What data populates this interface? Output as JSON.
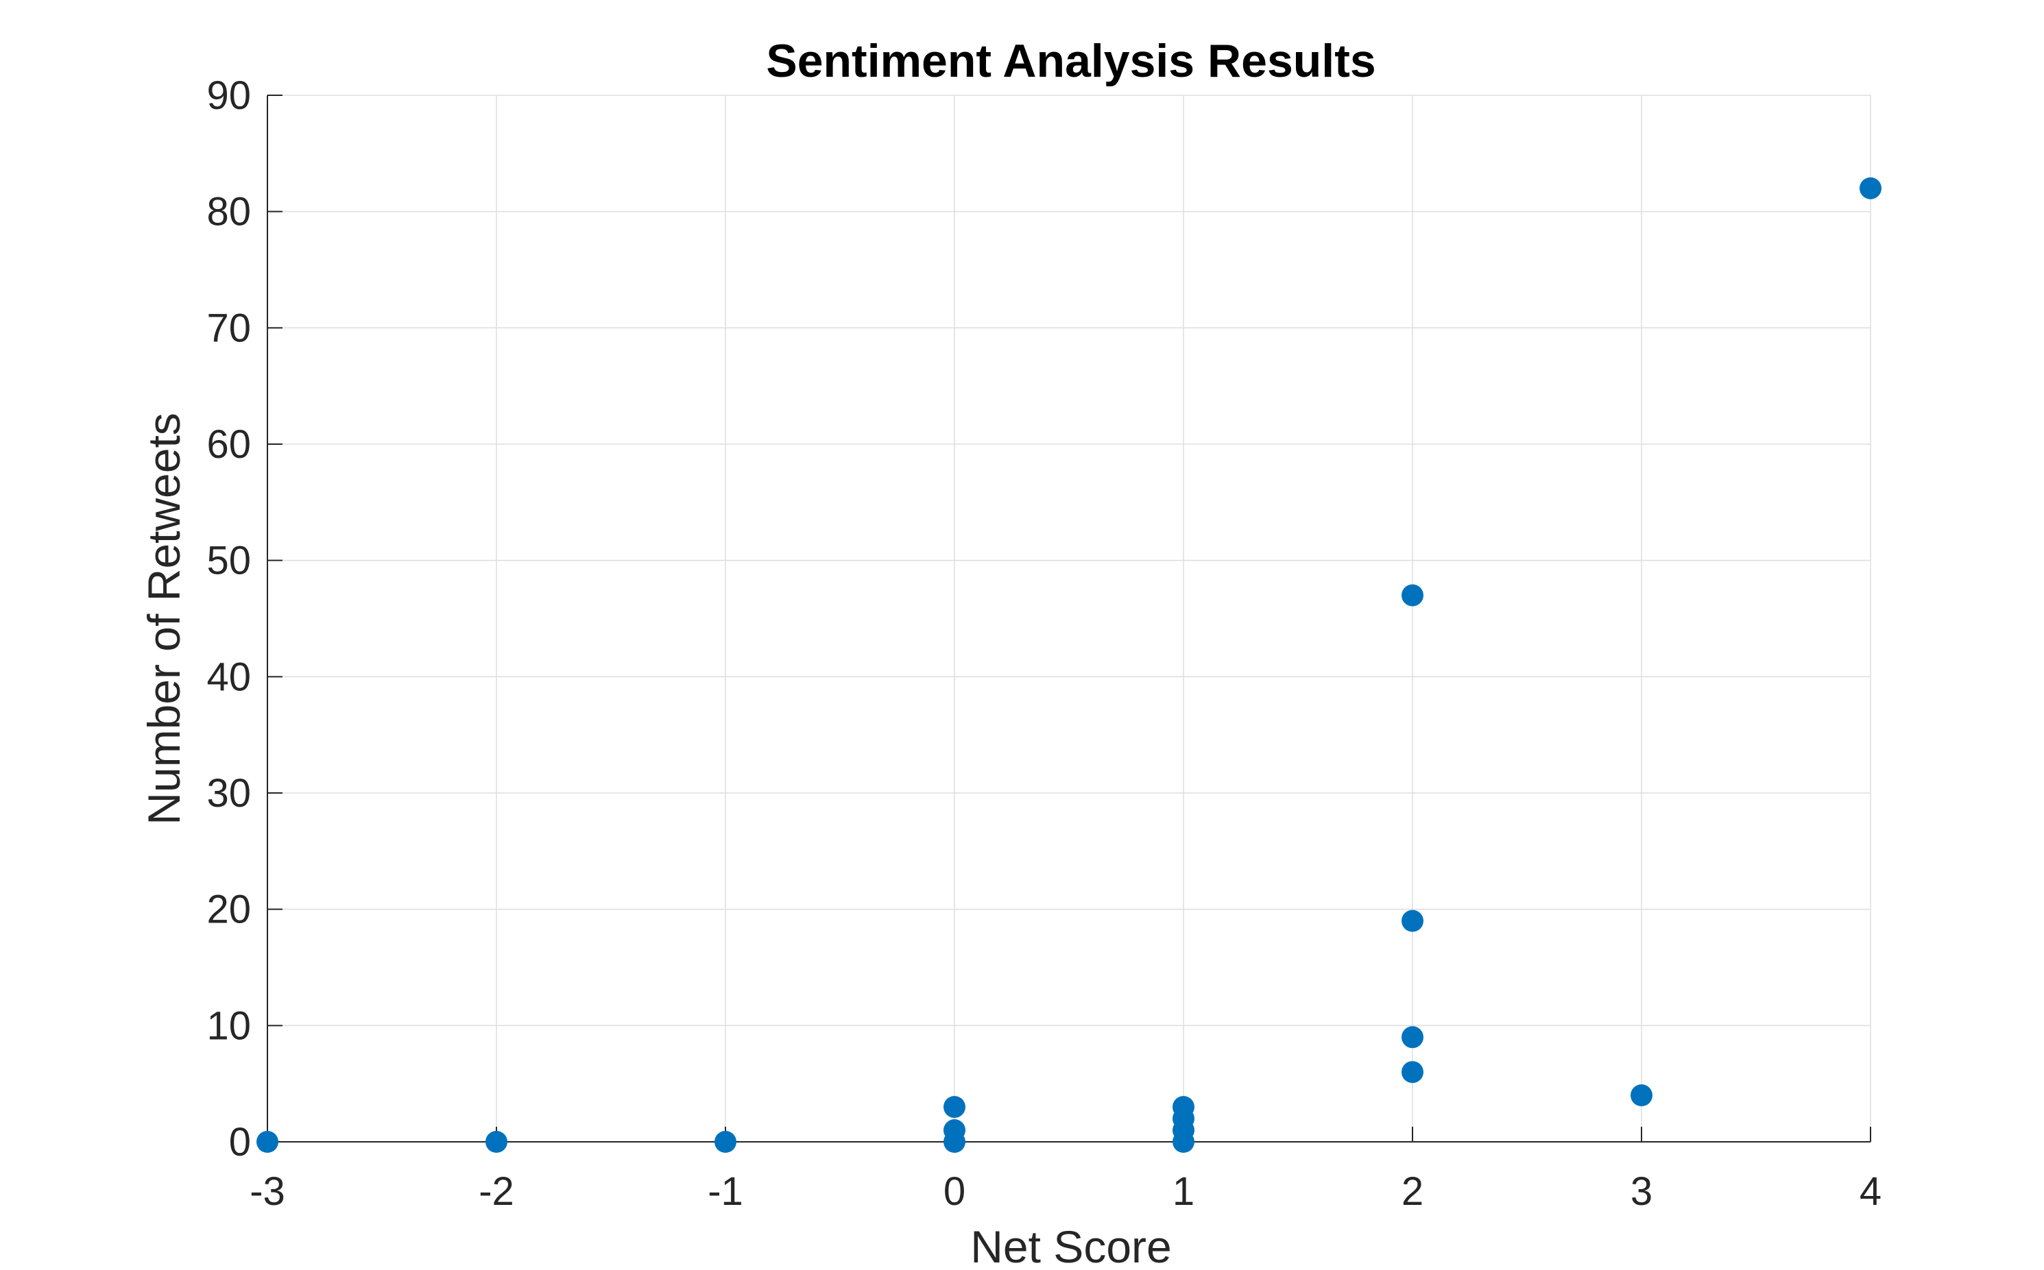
{
  "chart_data": {
    "type": "scatter",
    "title": "Sentiment Analysis Results",
    "xlabel": "Net Score",
    "ylabel": "Number of Retweets",
    "xlim": [
      -3,
      4
    ],
    "ylim": [
      0,
      90
    ],
    "x_ticks": [
      -3,
      -2,
      -1,
      0,
      1,
      2,
      3,
      4
    ],
    "y_ticks": [
      0,
      10,
      20,
      30,
      40,
      50,
      60,
      70,
      80,
      90
    ],
    "grid": true,
    "marker_color": "#0072BD",
    "series": [
      {
        "x": [
          -3,
          -2,
          -1,
          0,
          0,
          0,
          1,
          1,
          1,
          1,
          2,
          2,
          2,
          2,
          3,
          4
        ],
        "y": [
          0,
          0,
          0,
          0,
          1,
          3,
          0,
          1,
          2,
          3,
          6,
          9,
          19,
          47,
          4,
          82
        ]
      }
    ]
  }
}
